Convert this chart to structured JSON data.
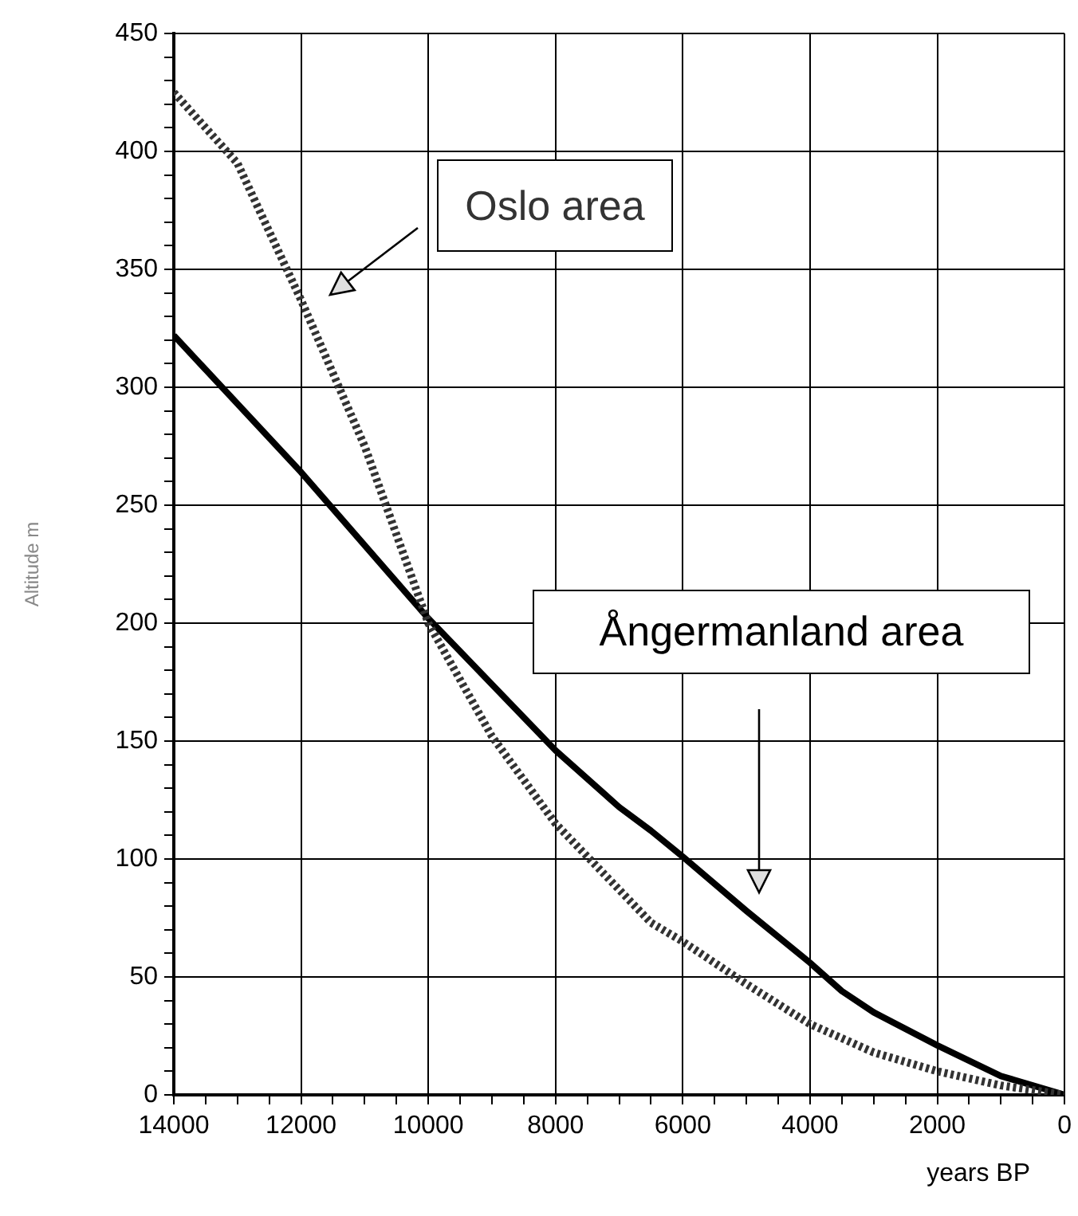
{
  "chart_data": {
    "type": "line",
    "xlabel": "years BP",
    "ylabel": "Altitude m",
    "xlim": [
      14000,
      0
    ],
    "ylim": [
      0,
      450
    ],
    "xticks": [
      14000,
      {
        "value": 13500,
        "label": null
      },
      {
        "value": 13000,
        "label": null
      },
      {
        "value": 12500,
        "label": null
      },
      12000,
      {
        "value": 11500,
        "label": null
      },
      {
        "value": 11000,
        "label": null
      },
      {
        "value": 10500,
        "label": null
      },
      10000,
      {
        "value": 9500,
        "label": null
      },
      {
        "value": 9000,
        "label": null
      },
      {
        "value": 8500,
        "label": null
      },
      8000,
      {
        "value": 7500,
        "label": null
      },
      {
        "value": 7000,
        "label": null
      },
      {
        "value": 6500,
        "label": null
      },
      6000,
      {
        "value": 5500,
        "label": null
      },
      {
        "value": 5000,
        "label": null
      },
      {
        "value": 4500,
        "label": null
      },
      4000,
      {
        "value": 3500,
        "label": null
      },
      {
        "value": 3000,
        "label": null
      },
      {
        "value": 2500,
        "label": null
      },
      2000,
      {
        "value": 1500,
        "label": null
      },
      {
        "value": 1000,
        "label": null
      },
      {
        "value": 500,
        "label": null
      },
      0
    ],
    "yticks": [
      0,
      {
        "value": 10,
        "label": null
      },
      {
        "value": 20,
        "label": null
      },
      {
        "value": 30,
        "label": null
      },
      {
        "value": 40,
        "label": null
      },
      50,
      {
        "value": 60,
        "label": null
      },
      {
        "value": 70,
        "label": null
      },
      {
        "value": 80,
        "label": null
      },
      {
        "value": 90,
        "label": null
      },
      100,
      {
        "value": 110,
        "label": null
      },
      {
        "value": 120,
        "label": null
      },
      {
        "value": 130,
        "label": null
      },
      {
        "value": 140,
        "label": null
      },
      150,
      {
        "value": 160,
        "label": null
      },
      {
        "value": 170,
        "label": null
      },
      {
        "value": 180,
        "label": null
      },
      {
        "value": 190,
        "label": null
      },
      200,
      {
        "value": 210,
        "label": null
      },
      {
        "value": 220,
        "label": null
      },
      {
        "value": 230,
        "label": null
      },
      {
        "value": 240,
        "label": null
      },
      250,
      {
        "value": 260,
        "label": null
      },
      {
        "value": 270,
        "label": null
      },
      {
        "value": 280,
        "label": null
      },
      {
        "value": 290,
        "label": null
      },
      300,
      {
        "value": 310,
        "label": null
      },
      {
        "value": 320,
        "label": null
      },
      {
        "value": 330,
        "label": null
      },
      {
        "value": 340,
        "label": null
      },
      350,
      {
        "value": 360,
        "label": null
      },
      {
        "value": 370,
        "label": null
      },
      {
        "value": 380,
        "label": null
      },
      {
        "value": 390,
        "label": null
      },
      400,
      {
        "value": 410,
        "label": null
      },
      {
        "value": 420,
        "label": null
      },
      {
        "value": 430,
        "label": null
      },
      {
        "value": 440,
        "label": null
      },
      450
    ],
    "grid": true,
    "legend": false,
    "marker": "none",
    "line_style": "solid",
    "series": [
      {
        "name": "Oslo area",
        "color": "#333333",
        "line_style": "dotted",
        "x": [
          14000,
          13000,
          12000,
          11000,
          10000,
          9000,
          8000,
          7000,
          6500,
          6000,
          5000,
          4000,
          3000,
          2000,
          1000,
          0
        ],
        "values": [
          425,
          395,
          337,
          275,
          200,
          152,
          115,
          87,
          73,
          65,
          47,
          30,
          18,
          10,
          4,
          0
        ]
      },
      {
        "name": "Ångermanland area",
        "color": "#000000",
        "x": [
          14000,
          12000,
          10000,
          8000,
          7000,
          6500,
          6000,
          5000,
          4000,
          3500,
          3000,
          2000,
          1000,
          0
        ],
        "values": [
          322,
          264,
          202,
          146,
          122,
          112,
          101,
          78,
          56,
          44,
          35,
          21,
          8,
          0
        ]
      }
    ]
  }
}
